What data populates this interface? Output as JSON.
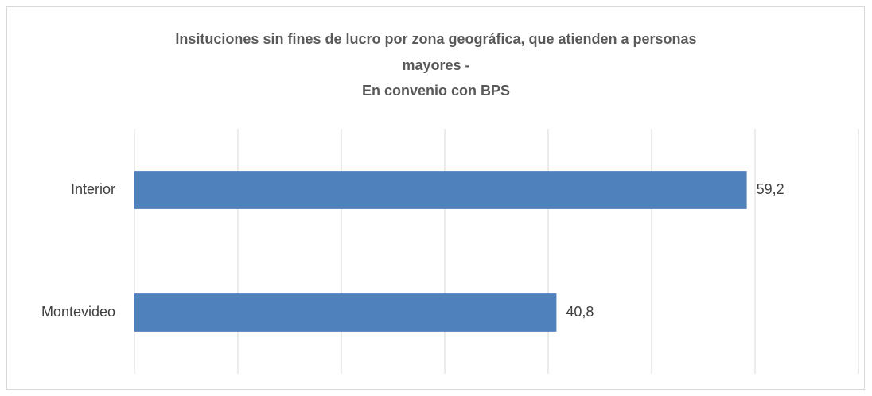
{
  "chart_data": {
    "type": "barh",
    "title": [
      "Insituciones sin fines de lucro por zona geográfica, que atienden a personas",
      "mayores -",
      "En convenio con BPS"
    ],
    "categories": [
      "Interior",
      "Montevideo"
    ],
    "values": [
      59.2,
      40.8
    ],
    "value_labels": [
      "59,2",
      "40,8"
    ],
    "color": "#4f81bd",
    "xlim": [
      0,
      70
    ],
    "xticks": [
      0,
      10,
      20,
      30,
      40,
      50,
      60,
      70
    ],
    "grid": true
  }
}
